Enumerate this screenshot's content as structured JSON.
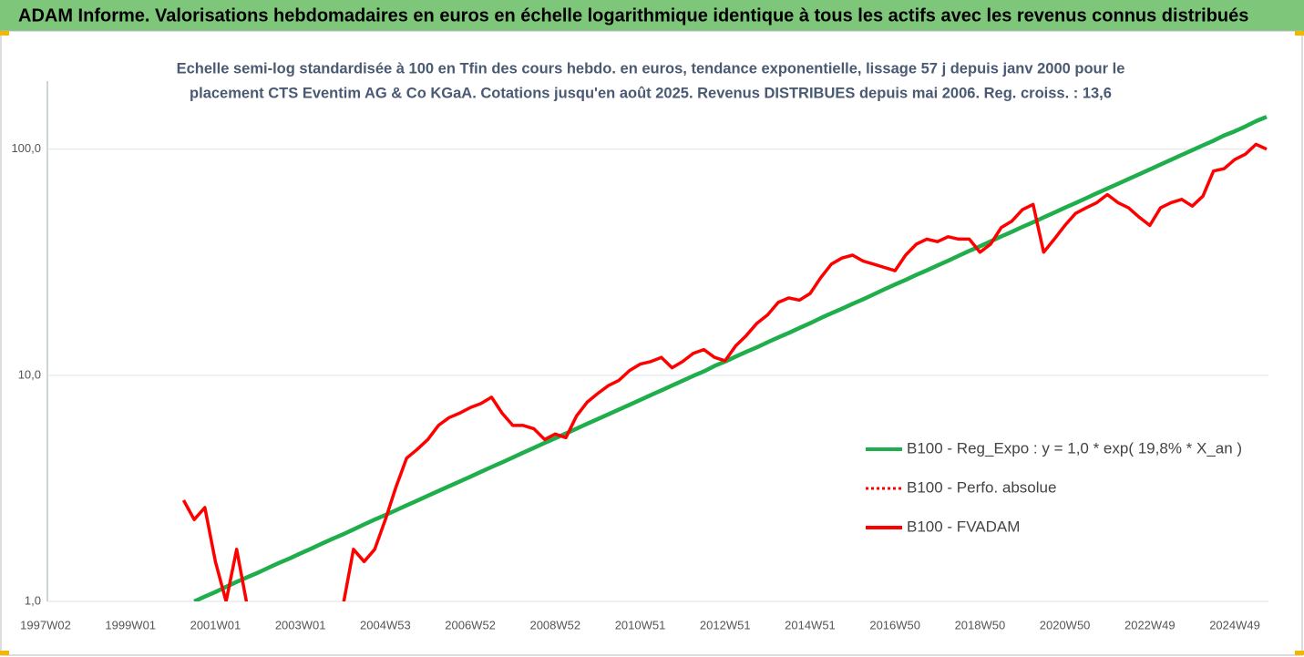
{
  "chart_data": {
    "type": "line",
    "title": "ADAM Informe. Valorisations hebdomadaires en euros en échelle logarithmique identique à tous les actifs avec les revenus connus distribués",
    "subtitle": [
      "Echelle semi-log standardisée à 100 en Tfin des cours hebdo. en euros, tendance exponentielle, lissage 57 j depuis janv 2000 pour le",
      "placement CTS Eventim AG & Co KGaA. Cotations jusqu'en août 2025. Revenus DISTRIBUES depuis mai 2006. Reg. croiss. : 13,6"
    ],
    "categories": [
      "1997W02",
      null,
      null,
      null,
      null,
      null,
      null,
      null,
      "1999W01",
      null,
      null,
      null,
      null,
      null,
      null,
      null,
      "2001W01",
      null,
      null,
      null,
      null,
      null,
      null,
      null,
      "2003W01",
      null,
      null,
      null,
      null,
      null,
      null,
      null,
      "2004W53",
      null,
      null,
      null,
      null,
      null,
      null,
      null,
      "2006W52",
      null,
      null,
      null,
      null,
      null,
      null,
      null,
      "2008W52",
      null,
      null,
      null,
      null,
      null,
      null,
      null,
      "2010W51",
      null,
      null,
      null,
      null,
      null,
      null,
      null,
      "2012W51",
      null,
      null,
      null,
      null,
      null,
      null,
      null,
      "2014W51",
      null,
      null,
      null,
      null,
      null,
      null,
      null,
      "2016W50",
      null,
      null,
      null,
      null,
      null,
      null,
      null,
      "2018W50",
      null,
      null,
      null,
      null,
      null,
      null,
      null,
      "2020W50",
      null,
      null,
      null,
      null,
      null,
      null,
      null,
      "2022W49",
      null,
      null,
      null,
      null,
      null,
      null,
      null,
      "2024W49",
      null,
      null,
      null
    ],
    "log_scale": true,
    "ylim": [
      1,
      200
    ],
    "yticks": [
      {
        "value": 1,
        "label": "1,0"
      },
      {
        "value": 10,
        "label": "10,0"
      },
      {
        "value": 100,
        "label": "100,0"
      }
    ],
    "grid": true,
    "legend": "right",
    "series": [
      {
        "name": "B100 - Reg_Expo : y = 1,0 * exp( 19,8% *  X_an )",
        "color": "#1fae4b",
        "style": "solid",
        "values": [
          null,
          null,
          null,
          null,
          null,
          null,
          null,
          null,
          null,
          null,
          null,
          null,
          null,
          null,
          1.0,
          1.05,
          1.1,
          1.16,
          1.22,
          1.28,
          1.34,
          1.41,
          1.48,
          1.55,
          1.63,
          1.71,
          1.8,
          1.89,
          1.98,
          2.08,
          2.19,
          2.3,
          2.41,
          2.53,
          2.66,
          2.79,
          2.93,
          3.08,
          3.23,
          3.39,
          3.56,
          3.74,
          3.93,
          4.12,
          4.33,
          4.55,
          4.78,
          5.02,
          5.27,
          5.53,
          5.81,
          6.1,
          6.4,
          6.72,
          7.06,
          7.41,
          7.78,
          8.17,
          8.58,
          9.01,
          9.46,
          9.94,
          10.4,
          11.0,
          11.5,
          12.1,
          12.7,
          13.3,
          14.0,
          14.7,
          15.4,
          16.2,
          17.0,
          17.9,
          18.8,
          19.7,
          20.7,
          21.7,
          22.8,
          24.0,
          25.2,
          26.4,
          27.8,
          29.1,
          30.6,
          32.1,
          33.8,
          35.5,
          37.2,
          39.1,
          41.1,
          43.1,
          45.3,
          47.5,
          49.9,
          52.4,
          55.1,
          57.8,
          60.7,
          63.8,
          67.0,
          70.3,
          73.8,
          77.5,
          81.4,
          85.5,
          89.8,
          94.3,
          99.0,
          104,
          109,
          115,
          120,
          126,
          133,
          139
        ]
      },
      {
        "name": "B100 - Perfo. absolue",
        "color": "#ff0000",
        "style": "dotted",
        "values": [
          null,
          null,
          null,
          null,
          null,
          null,
          null,
          null,
          null,
          null,
          null,
          null,
          null,
          2.8,
          2.3,
          2.6,
          1.5,
          1.0,
          1.7,
          0.95,
          null,
          null,
          null,
          null,
          null,
          null,
          null,
          null,
          0.95,
          1.7,
          1.5,
          1.7,
          2.3,
          3.2,
          4.3,
          4.7,
          5.2,
          6.0,
          6.5,
          6.8,
          7.2,
          7.5,
          8.0,
          6.8,
          6.0,
          6.0,
          5.8,
          5.2,
          5.5,
          5.3,
          6.6,
          7.6,
          8.3,
          9.0,
          9.5,
          10.5,
          11.2,
          11.5,
          12.0,
          10.8,
          11.5,
          12.5,
          13.0,
          12.0,
          11.6,
          13.5,
          15.0,
          17.0,
          18.5,
          21.0,
          22.0,
          21.5,
          23.0,
          27.0,
          31.0,
          33.0,
          34.0,
          32.0,
          31.0,
          30.0,
          29.0,
          34.0,
          38.0,
          40.0,
          39.0,
          41.0,
          40.0,
          40.0,
          35.0,
          38.0,
          45.0,
          48.0,
          54.0,
          57.0,
          35.0,
          40.0,
          46.0,
          52.0,
          55.0,
          58.0,
          63.0,
          58.0,
          55.0,
          50.0,
          46.0,
          55.0,
          58.0,
          60.0,
          56.0,
          62.0,
          80.0,
          82.0,
          90.0,
          95.0,
          105,
          100
        ]
      },
      {
        "name": "B100 - FVADAM",
        "color": "#ff0000",
        "style": "solid",
        "values": [
          null,
          null,
          null,
          null,
          null,
          null,
          null,
          null,
          null,
          null,
          null,
          null,
          null,
          2.8,
          2.3,
          2.6,
          1.5,
          1.0,
          1.7,
          0.95,
          null,
          null,
          null,
          null,
          null,
          null,
          null,
          null,
          0.95,
          1.7,
          1.5,
          1.7,
          2.3,
          3.2,
          4.3,
          4.7,
          5.2,
          6.0,
          6.5,
          6.8,
          7.2,
          7.5,
          8.0,
          6.8,
          6.0,
          6.0,
          5.8,
          5.2,
          5.5,
          5.3,
          6.6,
          7.6,
          8.3,
          9.0,
          9.5,
          10.5,
          11.2,
          11.5,
          12.0,
          10.8,
          11.5,
          12.5,
          13.0,
          12.0,
          11.6,
          13.5,
          15.0,
          17.0,
          18.5,
          21.0,
          22.0,
          21.5,
          23.0,
          27.0,
          31.0,
          33.0,
          34.0,
          32.0,
          31.0,
          30.0,
          29.0,
          34.0,
          38.0,
          40.0,
          39.0,
          41.0,
          40.0,
          40.0,
          35.0,
          38.0,
          45.0,
          48.0,
          54.0,
          57.0,
          35.0,
          40.0,
          46.0,
          52.0,
          55.0,
          58.0,
          63.0,
          58.0,
          55.0,
          50.0,
          46.0,
          55.0,
          58.0,
          60.0,
          56.0,
          62.0,
          80.0,
          82.0,
          90.0,
          95.0,
          105,
          100
        ]
      }
    ]
  }
}
